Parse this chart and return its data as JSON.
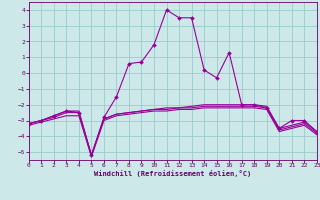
{
  "xlabel": "Windchill (Refroidissement éolien,°C)",
  "bg_color": "#cce8e8",
  "grid_color": "#99cccc",
  "line_color": "#990099",
  "xlim": [
    0,
    23
  ],
  "ylim": [
    -5.5,
    4.5
  ],
  "xticks": [
    0,
    1,
    2,
    3,
    4,
    5,
    6,
    7,
    8,
    9,
    10,
    11,
    12,
    13,
    14,
    15,
    16,
    17,
    18,
    19,
    20,
    21,
    22,
    23
  ],
  "yticks": [
    -5,
    -4,
    -3,
    -2,
    -1,
    0,
    1,
    2,
    3,
    4
  ],
  "lines": [
    {
      "x": [
        0,
        1,
        2,
        3,
        4,
        5,
        6,
        7,
        8,
        9,
        10,
        11,
        12,
        13,
        14,
        15,
        16,
        17,
        18,
        19,
        20,
        21,
        22,
        23
      ],
      "y": [
        -3.2,
        -3.0,
        -2.7,
        -2.4,
        -2.4,
        -5.2,
        -2.9,
        -2.6,
        -2.5,
        -2.4,
        -2.3,
        -2.2,
        -2.2,
        -2.1,
        -2.0,
        -2.0,
        -2.0,
        -2.0,
        -2.0,
        -2.1,
        -3.5,
        -3.3,
        -3.1,
        -3.7
      ],
      "marker": null
    },
    {
      "x": [
        0,
        1,
        2,
        3,
        4,
        5,
        6,
        7,
        8,
        9,
        10,
        11,
        12,
        13,
        14,
        15,
        16,
        17,
        18,
        19,
        20,
        21,
        22,
        23
      ],
      "y": [
        -3.2,
        -3.0,
        -2.8,
        -2.5,
        -2.5,
        -5.2,
        -2.9,
        -2.6,
        -2.5,
        -2.4,
        -2.3,
        -2.3,
        -2.2,
        -2.2,
        -2.1,
        -2.1,
        -2.1,
        -2.1,
        -2.1,
        -2.2,
        -3.6,
        -3.4,
        -3.2,
        -3.8
      ],
      "marker": null
    },
    {
      "x": [
        0,
        1,
        2,
        3,
        4,
        5,
        6,
        7,
        8,
        9,
        10,
        11,
        12,
        13,
        14,
        15,
        16,
        17,
        18,
        19,
        20,
        21,
        22,
        23
      ],
      "y": [
        -3.3,
        -3.1,
        -2.9,
        -2.7,
        -2.7,
        -5.3,
        -3.0,
        -2.7,
        -2.6,
        -2.5,
        -2.4,
        -2.4,
        -2.3,
        -2.3,
        -2.2,
        -2.2,
        -2.2,
        -2.2,
        -2.2,
        -2.3,
        -3.7,
        -3.5,
        -3.3,
        -3.9
      ],
      "marker": null
    },
    {
      "x": [
        0,
        1,
        2,
        3,
        4,
        5,
        6,
        7,
        8,
        9,
        10,
        11,
        12,
        13,
        14,
        15,
        16,
        17,
        18,
        19,
        20,
        21,
        22,
        23
      ],
      "y": [
        -3.2,
        -3.0,
        -2.7,
        -2.4,
        -2.5,
        -5.2,
        -2.8,
        -1.5,
        0.6,
        0.7,
        1.8,
        4.0,
        3.5,
        3.5,
        0.2,
        -0.3,
        1.3,
        -2.0,
        -2.0,
        -2.2,
        -3.5,
        -3.0,
        -3.0,
        -3.7
      ],
      "marker": "D"
    }
  ]
}
